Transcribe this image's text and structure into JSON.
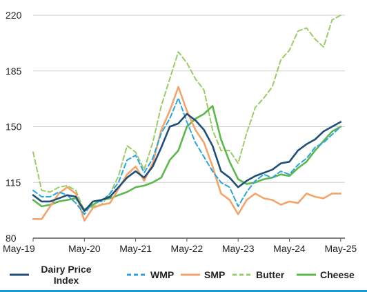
{
  "chart_data": {
    "type": "line",
    "title": "",
    "xlabel": "",
    "ylabel": "",
    "ylim": [
      80,
      220
    ],
    "yticks": [
      80,
      115,
      150,
      185,
      220
    ],
    "xlim": [
      "2019-05",
      "2025-06"
    ],
    "xticks": [
      {
        "label": "May-19",
        "date": "2019-05"
      },
      {
        "label": "May-20",
        "date": "2020-05"
      },
      {
        "label": "May-21",
        "date": "2021-05"
      },
      {
        "label": "May-22",
        "date": "2022-05"
      },
      {
        "label": "May-23",
        "date": "2023-05"
      },
      {
        "label": "May-24",
        "date": "2024-05"
      },
      {
        "label": "May-25",
        "date": "2025-05"
      }
    ],
    "grid": {
      "horizontal": true,
      "vertical": false
    },
    "legend_position": "bottom",
    "series": [
      {
        "name": "Dairy Price Index",
        "legend_lines": [
          "Dairy Price",
          "Index"
        ],
        "color": "#1f4e79",
        "style": "solid",
        "points": [
          [
            "2019-05",
            107
          ],
          [
            "2019-07",
            103
          ],
          [
            "2019-09",
            103
          ],
          [
            "2019-11",
            105
          ],
          [
            "2020-01",
            107
          ],
          [
            "2020-03",
            106
          ],
          [
            "2020-05",
            97
          ],
          [
            "2020-07",
            103
          ],
          [
            "2020-09",
            104
          ],
          [
            "2020-11",
            106
          ],
          [
            "2021-01",
            112
          ],
          [
            "2021-03",
            118
          ],
          [
            "2021-05",
            122
          ],
          [
            "2021-07",
            118
          ],
          [
            "2021-09",
            125
          ],
          [
            "2021-11",
            137
          ],
          [
            "2022-01",
            150
          ],
          [
            "2022-03",
            152
          ],
          [
            "2022-05",
            158
          ],
          [
            "2022-07",
            154
          ],
          [
            "2022-09",
            148
          ],
          [
            "2022-11",
            138
          ],
          [
            "2023-01",
            122
          ],
          [
            "2023-03",
            118
          ],
          [
            "2023-05",
            112
          ],
          [
            "2023-07",
            116
          ],
          [
            "2023-09",
            119
          ],
          [
            "2023-11",
            121
          ],
          [
            "2024-01",
            123
          ],
          [
            "2024-03",
            127
          ],
          [
            "2024-05",
            128
          ],
          [
            "2024-07",
            135
          ],
          [
            "2024-09",
            139
          ],
          [
            "2024-11",
            142
          ],
          [
            "2025-01",
            147
          ],
          [
            "2025-03",
            150
          ],
          [
            "2025-05",
            153
          ]
        ]
      },
      {
        "name": "WMP",
        "color": "#2aa4e0",
        "style": "dashed",
        "points": [
          [
            "2019-05",
            110
          ],
          [
            "2019-07",
            106
          ],
          [
            "2019-09",
            106
          ],
          [
            "2019-11",
            109
          ],
          [
            "2020-01",
            107
          ],
          [
            "2020-03",
            102
          ],
          [
            "2020-05",
            95
          ],
          [
            "2020-07",
            103
          ],
          [
            "2020-09",
            103
          ],
          [
            "2020-11",
            108
          ],
          [
            "2021-01",
            115
          ],
          [
            "2021-03",
            129
          ],
          [
            "2021-05",
            132
          ],
          [
            "2021-07",
            121
          ],
          [
            "2021-09",
            130
          ],
          [
            "2021-11",
            146
          ],
          [
            "2022-01",
            155
          ],
          [
            "2022-03",
            168
          ],
          [
            "2022-05",
            153
          ],
          [
            "2022-07",
            140
          ],
          [
            "2022-09",
            131
          ],
          [
            "2022-11",
            122
          ],
          [
            "2023-01",
            115
          ],
          [
            "2023-03",
            112
          ],
          [
            "2023-05",
            100
          ],
          [
            "2023-07",
            109
          ],
          [
            "2023-09",
            116
          ],
          [
            "2023-11",
            120
          ],
          [
            "2024-01",
            118
          ],
          [
            "2024-03",
            122
          ],
          [
            "2024-05",
            120
          ],
          [
            "2024-07",
            126
          ],
          [
            "2024-09",
            130
          ],
          [
            "2024-11",
            137
          ],
          [
            "2025-01",
            140
          ],
          [
            "2025-03",
            145
          ],
          [
            "2025-05",
            150
          ]
        ]
      },
      {
        "name": "SMP",
        "color": "#f4a46a",
        "style": "solid",
        "points": [
          [
            "2019-05",
            92
          ],
          [
            "2019-07",
            92
          ],
          [
            "2019-09",
            100
          ],
          [
            "2019-11",
            108
          ],
          [
            "2020-01",
            112
          ],
          [
            "2020-03",
            108
          ],
          [
            "2020-05",
            91
          ],
          [
            "2020-07",
            99
          ],
          [
            "2020-09",
            101
          ],
          [
            "2020-11",
            102
          ],
          [
            "2021-01",
            111
          ],
          [
            "2021-03",
            120
          ],
          [
            "2021-05",
            125
          ],
          [
            "2021-07",
            116
          ],
          [
            "2021-09",
            127
          ],
          [
            "2021-11",
            148
          ],
          [
            "2022-01",
            160
          ],
          [
            "2022-03",
            175
          ],
          [
            "2022-05",
            160
          ],
          [
            "2022-07",
            148
          ],
          [
            "2022-09",
            140
          ],
          [
            "2022-11",
            125
          ],
          [
            "2023-01",
            108
          ],
          [
            "2023-03",
            104
          ],
          [
            "2023-05",
            95
          ],
          [
            "2023-07",
            104
          ],
          [
            "2023-09",
            108
          ],
          [
            "2023-11",
            105
          ],
          [
            "2024-01",
            104
          ],
          [
            "2024-03",
            101
          ],
          [
            "2024-05",
            103
          ],
          [
            "2024-07",
            102
          ],
          [
            "2024-09",
            108
          ],
          [
            "2024-11",
            106
          ],
          [
            "2025-01",
            105
          ],
          [
            "2025-03",
            108
          ],
          [
            "2025-05",
            108
          ]
        ]
      },
      {
        "name": "Butter",
        "color": "#98cc64",
        "style": "dashed",
        "points": [
          [
            "2019-05",
            134
          ],
          [
            "2019-07",
            110
          ],
          [
            "2019-09",
            109
          ],
          [
            "2019-11",
            112
          ],
          [
            "2020-01",
            113
          ],
          [
            "2020-03",
            110
          ],
          [
            "2020-05",
            97
          ],
          [
            "2020-07",
            100
          ],
          [
            "2020-09",
            101
          ],
          [
            "2020-11",
            108
          ],
          [
            "2021-01",
            119
          ],
          [
            "2021-03",
            138
          ],
          [
            "2021-05",
            134
          ],
          [
            "2021-07",
            123
          ],
          [
            "2021-09",
            140
          ],
          [
            "2021-11",
            163
          ],
          [
            "2022-01",
            180
          ],
          [
            "2022-03",
            197
          ],
          [
            "2022-05",
            190
          ],
          [
            "2022-07",
            180
          ],
          [
            "2022-09",
            173
          ],
          [
            "2022-11",
            148
          ],
          [
            "2023-01",
            135
          ],
          [
            "2023-03",
            135
          ],
          [
            "2023-05",
            127
          ],
          [
            "2023-07",
            146
          ],
          [
            "2023-09",
            162
          ],
          [
            "2023-11",
            168
          ],
          [
            "2024-01",
            175
          ],
          [
            "2024-03",
            192
          ],
          [
            "2024-05",
            198
          ],
          [
            "2024-07",
            210
          ],
          [
            "2024-09",
            212
          ],
          [
            "2024-11",
            205
          ],
          [
            "2025-01",
            200
          ],
          [
            "2025-03",
            217
          ],
          [
            "2025-05",
            220
          ]
        ]
      },
      {
        "name": "Cheese",
        "color": "#5cb84c",
        "style": "solid",
        "points": [
          [
            "2019-05",
            104
          ],
          [
            "2019-07",
            100
          ],
          [
            "2019-09",
            101
          ],
          [
            "2019-11",
            103
          ],
          [
            "2020-01",
            104
          ],
          [
            "2020-03",
            105
          ],
          [
            "2020-05",
            98
          ],
          [
            "2020-07",
            101
          ],
          [
            "2020-09",
            104
          ],
          [
            "2020-11",
            105
          ],
          [
            "2021-01",
            107
          ],
          [
            "2021-03",
            109
          ],
          [
            "2021-05",
            112
          ],
          [
            "2021-07",
            113
          ],
          [
            "2021-09",
            115
          ],
          [
            "2021-11",
            118
          ],
          [
            "2022-01",
            129
          ],
          [
            "2022-03",
            135
          ],
          [
            "2022-05",
            150
          ],
          [
            "2022-07",
            155
          ],
          [
            "2022-09",
            158
          ],
          [
            "2022-11",
            163
          ],
          [
            "2023-01",
            142
          ],
          [
            "2023-03",
            128
          ],
          [
            "2023-05",
            117
          ],
          [
            "2023-07",
            114
          ],
          [
            "2023-09",
            115
          ],
          [
            "2023-11",
            117
          ],
          [
            "2024-01",
            118
          ],
          [
            "2024-03",
            120
          ],
          [
            "2024-05",
            119
          ],
          [
            "2024-07",
            124
          ],
          [
            "2024-09",
            128
          ],
          [
            "2024-11",
            135
          ],
          [
            "2025-01",
            141
          ],
          [
            "2025-03",
            147
          ],
          [
            "2025-05",
            150
          ]
        ]
      }
    ]
  }
}
